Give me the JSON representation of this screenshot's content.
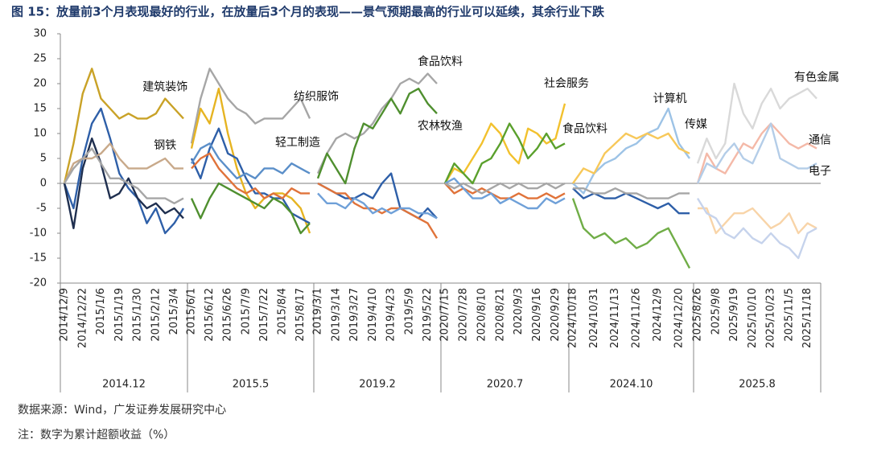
{
  "title": "图 15：放量前3个月表现最好的行业，在放量后3个月的表现——景气预期最高的行业可以延续，其余行业下跌",
  "source": "数据来源：Wind，广发证券发展研究中心",
  "note": "注：数字为累计超额收益（%）",
  "chart_data": [
    {
      "type": "line",
      "x_label": "2014.12",
      "ylim": [
        -20,
        30
      ],
      "yticks": [
        -20,
        -15,
        -10,
        -5,
        0,
        5,
        10,
        15,
        20,
        25,
        30
      ],
      "categories": [
        "2014/12/9",
        null,
        "2014/12/22",
        null,
        "2015/1/6",
        null,
        "2015/1/19",
        null,
        "2015/1/30",
        null,
        "2015/2/12",
        null,
        "2015/3/4",
        null
      ],
      "series": [
        {
          "name": "建筑装饰",
          "color": "#c9a227",
          "values": [
            0,
            8,
            18,
            23,
            17,
            15,
            13,
            14,
            13,
            13,
            14,
            17,
            15,
            13
          ]
        },
        {
          "color": "#2e5fa8",
          "values": [
            0,
            -5,
            5,
            12,
            15,
            9,
            2,
            -1,
            -3,
            -8,
            -5,
            -10,
            -8,
            -5
          ]
        },
        {
          "color": "#1f2f4f",
          "values": [
            0,
            -9,
            3,
            9,
            4,
            -3,
            -2,
            1,
            -3,
            -5,
            -4,
            -6,
            -5,
            -7
          ]
        },
        {
          "name": "钢铁",
          "color": "#c8a98a",
          "values": [
            0,
            4,
            5,
            5,
            6,
            8,
            5,
            3,
            3,
            3,
            4,
            5,
            3,
            3
          ]
        },
        {
          "color": "#a6a6a6",
          "values": [
            0,
            3,
            5,
            7,
            4,
            1,
            1,
            0,
            -1,
            -3,
            -3,
            -3,
            -4,
            -3
          ]
        }
      ]
    },
    {
      "type": "line",
      "x_label": "2015.5",
      "ylim": [
        -20,
        30
      ],
      "categories": [
        "2015/6/1",
        null,
        "2015/6/12",
        null,
        "2015/6/26",
        null,
        "2015/7/9",
        null,
        "2015/7/22",
        null,
        "2015/8/4",
        null,
        "2015/8/17",
        null
      ],
      "series": [
        {
          "name": "纺织服饰",
          "color": "#a6a6a6",
          "values": [
            8,
            17,
            23,
            20,
            17,
            15,
            14,
            12,
            13,
            13,
            13,
            15,
            17,
            13
          ]
        },
        {
          "color": "#e6b422",
          "values": [
            7,
            15,
            12,
            19,
            10,
            3,
            -2,
            -5,
            -3,
            -2,
            -2,
            -3,
            -5,
            -10
          ]
        },
        {
          "color": "#2e5fa8",
          "values": [
            5,
            1,
            7,
            11,
            6,
            5,
            1,
            -2,
            -2,
            -3,
            -3,
            -6,
            -7,
            -8
          ]
        },
        {
          "color": "#4f8f2f",
          "values": [
            -3,
            -7,
            -3,
            0,
            -1,
            -2,
            -3,
            -4,
            -5,
            -3,
            -4,
            -6,
            -10,
            -8
          ]
        },
        {
          "color": "#e0733a",
          "values": [
            3,
            5,
            6,
            3,
            1,
            -1,
            -2,
            -1,
            -3,
            -2,
            -3,
            -1,
            -2,
            -2
          ]
        },
        {
          "name": "轻工制造",
          "color": "#5b8fc9",
          "values": [
            4,
            7,
            8,
            5,
            3,
            1,
            2,
            1,
            3,
            3,
            2,
            4,
            3,
            2
          ]
        }
      ]
    },
    {
      "type": "line",
      "x_label": "2019.2",
      "ylim": [
        -20,
        30
      ],
      "categories": [
        "2019/3/1",
        null,
        "2019/3/14",
        null,
        "2019/3/27",
        null,
        "2019/4/10",
        null,
        "2019/4/23",
        null,
        "2019/5/9",
        null,
        "2019/5/22",
        null
      ],
      "series": [
        {
          "name": "食品饮料",
          "color": "#a6a6a6",
          "values": [
            2,
            6,
            9,
            10,
            9,
            10,
            12,
            15,
            17,
            20,
            21,
            20,
            22,
            20
          ]
        },
        {
          "name": "农林牧渔",
          "color": "#4f8f2f",
          "values": [
            1,
            6,
            3,
            0,
            7,
            12,
            11,
            14,
            17,
            14,
            18,
            19,
            16,
            14
          ]
        },
        {
          "color": "#2e5fa8",
          "values": [
            0,
            -1,
            -2,
            -3,
            -3,
            -2,
            -3,
            0,
            2,
            -5,
            -6,
            -7,
            -5,
            -7
          ]
        },
        {
          "color": "#e0733a",
          "values": [
            0,
            -1,
            -2,
            -2,
            -4,
            -5,
            -5,
            -6,
            -5,
            -5,
            -6,
            -7,
            -8,
            -11
          ]
        },
        {
          "color": "#6fa0d8",
          "values": [
            -2,
            -4,
            -4,
            -5,
            -3,
            -4,
            -6,
            -5,
            -6,
            -5,
            -5,
            -6,
            -6,
            -7
          ]
        }
      ]
    },
    {
      "type": "line",
      "x_label": "2020.7",
      "ylim": [
        -20,
        30
      ],
      "categories": [
        "2020/7/15",
        null,
        "2020/7/28",
        null,
        "2020/8/10",
        null,
        "2020/8/21",
        null,
        "2020/9/3",
        null,
        "2020/9/16",
        null,
        "2020/9/29",
        null
      ],
      "series": [
        {
          "name": "社会服务",
          "color": "#f2c12e",
          "values": [
            0,
            3,
            2,
            5,
            8,
            12,
            10,
            6,
            4,
            11,
            10,
            8,
            9,
            16
          ]
        },
        {
          "name": "食品饮料",
          "color": "#5aa02c",
          "values": [
            0,
            4,
            2,
            0,
            4,
            5,
            8,
            12,
            9,
            5,
            7,
            10,
            7,
            8
          ]
        },
        {
          "color": "#e0733a",
          "values": [
            0,
            -2,
            -1,
            -2,
            -1,
            -2,
            -3,
            -3,
            -2,
            -3,
            -3,
            -2,
            -3,
            -2
          ]
        },
        {
          "color": "#6fa0d8",
          "values": [
            0,
            1,
            -1,
            -3,
            -3,
            -2,
            -4,
            -3,
            -4,
            -5,
            -5,
            -3,
            -4,
            -3
          ]
        },
        {
          "color": "#a6a6a6",
          "values": [
            0,
            -1,
            0,
            -1,
            -2,
            -1,
            0,
            -1,
            0,
            -1,
            -1,
            0,
            -1,
            0
          ]
        }
      ]
    },
    {
      "type": "line",
      "x_label": "2024.10",
      "ylim": [
        -20,
        30
      ],
      "categories": [
        "2024/10/18",
        null,
        "2024/10/31",
        null,
        "2024/11/13",
        null,
        "2024/11/26",
        null,
        "2024/12/9",
        null,
        "2024/12/20",
        null
      ],
      "series": [
        {
          "name": "计算机",
          "color": "#9dc3e6",
          "values": [
            0,
            -2,
            2,
            4,
            5,
            7,
            8,
            10,
            11,
            15,
            8,
            5
          ]
        },
        {
          "name": "传媒",
          "color": "#f7c85a",
          "values": [
            0,
            3,
            2,
            6,
            8,
            10,
            9,
            10,
            9,
            10,
            7,
            6
          ]
        },
        {
          "color": "#70ad47",
          "values": [
            -3,
            -9,
            -11,
            -10,
            -12,
            -11,
            -13,
            -12,
            -10,
            -9,
            -13,
            -17
          ]
        },
        {
          "color": "#2e5fa8",
          "values": [
            -1,
            -3,
            -2,
            -3,
            -3,
            -2,
            -3,
            -4,
            -5,
            -4,
            -6,
            -6
          ]
        },
        {
          "color": "#a6a6a6",
          "values": [
            -1,
            -1,
            -2,
            -2,
            -1,
            -2,
            -2,
            -3,
            -3,
            -3,
            -2,
            -2
          ]
        }
      ]
    },
    {
      "type": "line",
      "x_label": "2025.8",
      "ylim": [
        -20,
        30
      ],
      "categories": [
        "2025/8/26",
        null,
        "2025/9/8",
        null,
        "2025/9/19",
        null,
        "2025/10/10",
        null,
        "2025/10/23",
        null,
        "2025/11/5",
        null,
        "2025/11/18",
        null
      ],
      "series": [
        {
          "name": "有色金属",
          "color": "#d9d9d9",
          "values": [
            4,
            9,
            5,
            8,
            20,
            14,
            11,
            16,
            19,
            15,
            17,
            18,
            19,
            17
          ]
        },
        {
          "name": "通信",
          "color": "#f4b9a8",
          "values": [
            0,
            6,
            3,
            2,
            5,
            8,
            7,
            10,
            12,
            10,
            8,
            7,
            8,
            7
          ]
        },
        {
          "name": "电子",
          "color": "#b4cde8",
          "values": [
            0,
            4,
            3,
            6,
            8,
            5,
            4,
            8,
            12,
            5,
            4,
            3,
            3,
            4
          ]
        },
        {
          "color": "#f8d4a8",
          "values": [
            -5,
            -5,
            -10,
            -8,
            -6,
            -6,
            -5,
            -7,
            -9,
            -8,
            -6,
            -10,
            -8,
            -9
          ]
        },
        {
          "color": "#c6d3ec",
          "values": [
            -3,
            -6,
            -7,
            -10,
            -11,
            -9,
            -11,
            -12,
            -10,
            -12,
            -13,
            -15,
            -10,
            -9
          ]
        }
      ]
    }
  ]
}
